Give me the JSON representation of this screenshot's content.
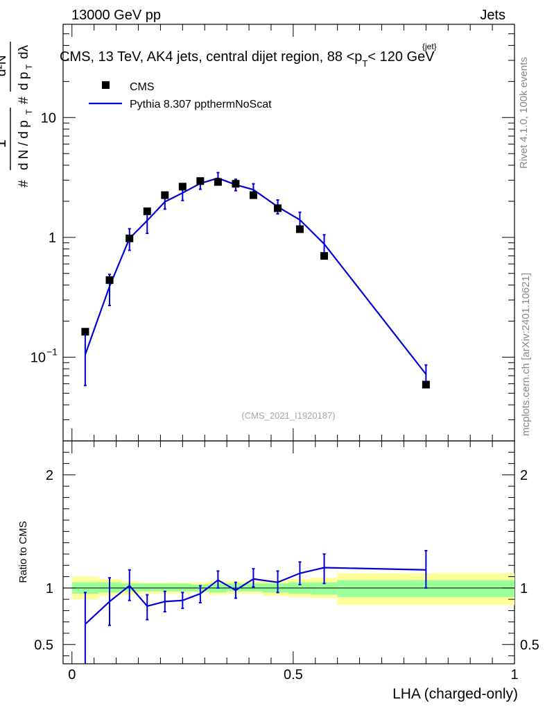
{
  "header": {
    "energy_label": "13000 GeV pp",
    "category_label": "Jets"
  },
  "side_labels": {
    "rivet": "Rivet 4.1.0,  100k events",
    "source": "mcplots.cern.ch [arXiv:2401.10621]"
  },
  "chart_data": [
    {
      "type": "line",
      "panel": "main",
      "title": "CMS, 13 TeV, AK4 jets, central dijet region, 88 <p_T^{jet}< 120 GeV",
      "analysis_tag": "(CMS_2021_I1920187)",
      "ylabel": "1/(dN/dp_T) d²N/(dp_T dλ)",
      "yscale": "log",
      "ylim": [
        0.02,
        60
      ],
      "xlim": [
        -0.02,
        1.0
      ],
      "yticks": [
        0.1,
        1,
        10
      ],
      "ytick_labels": [
        "10^-1",
        "1",
        "10"
      ],
      "legend": {
        "position": "top-left",
        "entries": [
          "CMS",
          "Pythia 8.307 ppthermNoScat"
        ]
      },
      "series": [
        {
          "name": "CMS",
          "style": "markers",
          "color": "#000000",
          "x": [
            0.03,
            0.085,
            0.13,
            0.17,
            0.21,
            0.25,
            0.29,
            0.33,
            0.37,
            0.41,
            0.465,
            0.515,
            0.57,
            0.8
          ],
          "y": [
            0.163,
            0.44,
            0.98,
            1.65,
            2.25,
            2.65,
            2.95,
            2.9,
            2.8,
            2.25,
            1.75,
            1.17,
            0.7,
            0.059
          ]
        },
        {
          "name": "Pythia 8.307 ppthermNoScat",
          "style": "line",
          "color": "#0000dd",
          "x": [
            0.03,
            0.085,
            0.13,
            0.17,
            0.21,
            0.25,
            0.29,
            0.33,
            0.37,
            0.41,
            0.465,
            0.515,
            0.57,
            0.8
          ],
          "y": [
            0.105,
            0.39,
            0.98,
            1.38,
            1.98,
            2.35,
            2.82,
            3.12,
            2.75,
            2.5,
            1.8,
            1.4,
            0.88,
            0.072
          ],
          "yerr_low": [
            0.047,
            0.12,
            0.2,
            0.3,
            0.26,
            0.32,
            0.3,
            0.3,
            0.3,
            0.28,
            0.23,
            0.25,
            0.21,
            0.014
          ],
          "yerr_high": [
            0.05,
            0.1,
            0.2,
            0.3,
            0.26,
            0.32,
            0.3,
            0.35,
            0.3,
            0.3,
            0.25,
            0.22,
            0.17,
            0.014
          ]
        }
      ]
    },
    {
      "type": "line",
      "panel": "ratio",
      "xlabel": "LHA (charged-only)",
      "ylabel": "Ratio to CMS",
      "ylim": [
        0.33,
        2.3
      ],
      "xlim": [
        -0.02,
        1.0
      ],
      "yticks": [
        0.5,
        1,
        2
      ],
      "ytick_labels": [
        "0.5",
        "1",
        "2"
      ],
      "xticks": [
        0,
        0.5,
        1
      ],
      "xtick_labels": [
        "0",
        "0.5",
        "1"
      ],
      "bands": {
        "edges": [
          0.0,
          0.06,
          0.11,
          0.15,
          0.19,
          0.23,
          0.27,
          0.31,
          0.35,
          0.39,
          0.43,
          0.49,
          0.54,
          0.6,
          1.0
        ],
        "inner_low": [
          0.95,
          0.96,
          0.97,
          0.97,
          0.97,
          0.97,
          0.97,
          0.96,
          0.97,
          0.97,
          0.96,
          0.95,
          0.94,
          0.92
        ],
        "inner_high": [
          1.05,
          1.05,
          1.04,
          1.04,
          1.04,
          1.04,
          1.03,
          1.04,
          1.04,
          1.04,
          1.04,
          1.05,
          1.05,
          1.07
        ],
        "outer_low": [
          0.9,
          0.93,
          0.94,
          0.95,
          0.95,
          0.95,
          0.96,
          0.94,
          0.95,
          0.95,
          0.93,
          0.92,
          0.91,
          0.85
        ],
        "outer_high": [
          1.1,
          1.08,
          1.06,
          1.05,
          1.05,
          1.05,
          1.05,
          1.06,
          1.06,
          1.06,
          1.07,
          1.08,
          1.09,
          1.13
        ],
        "inner_color": "#99ff99",
        "outer_color": "#ffff99"
      },
      "series": [
        {
          "name": "Pythia 8.307 ppthermNoScat / CMS",
          "style": "line",
          "color": "#0000dd",
          "x": [
            0.03,
            0.085,
            0.13,
            0.17,
            0.21,
            0.25,
            0.29,
            0.33,
            0.37,
            0.41,
            0.465,
            0.515,
            0.57,
            0.8
          ],
          "y": [
            0.68,
            0.88,
            1.02,
            0.84,
            0.88,
            0.89,
            0.95,
            1.07,
            0.98,
            1.08,
            1.05,
            1.13,
            1.18,
            1.16
          ],
          "yerr_low": [
            0.35,
            0.21,
            0.13,
            0.12,
            0.09,
            0.07,
            0.08,
            0.07,
            0.07,
            0.07,
            0.09,
            0.1,
            0.14,
            0.16
          ],
          "yerr_high": [
            0.28,
            0.21,
            0.14,
            0.1,
            0.09,
            0.07,
            0.07,
            0.08,
            0.07,
            0.09,
            0.1,
            0.1,
            0.12,
            0.17
          ]
        }
      ]
    }
  ]
}
